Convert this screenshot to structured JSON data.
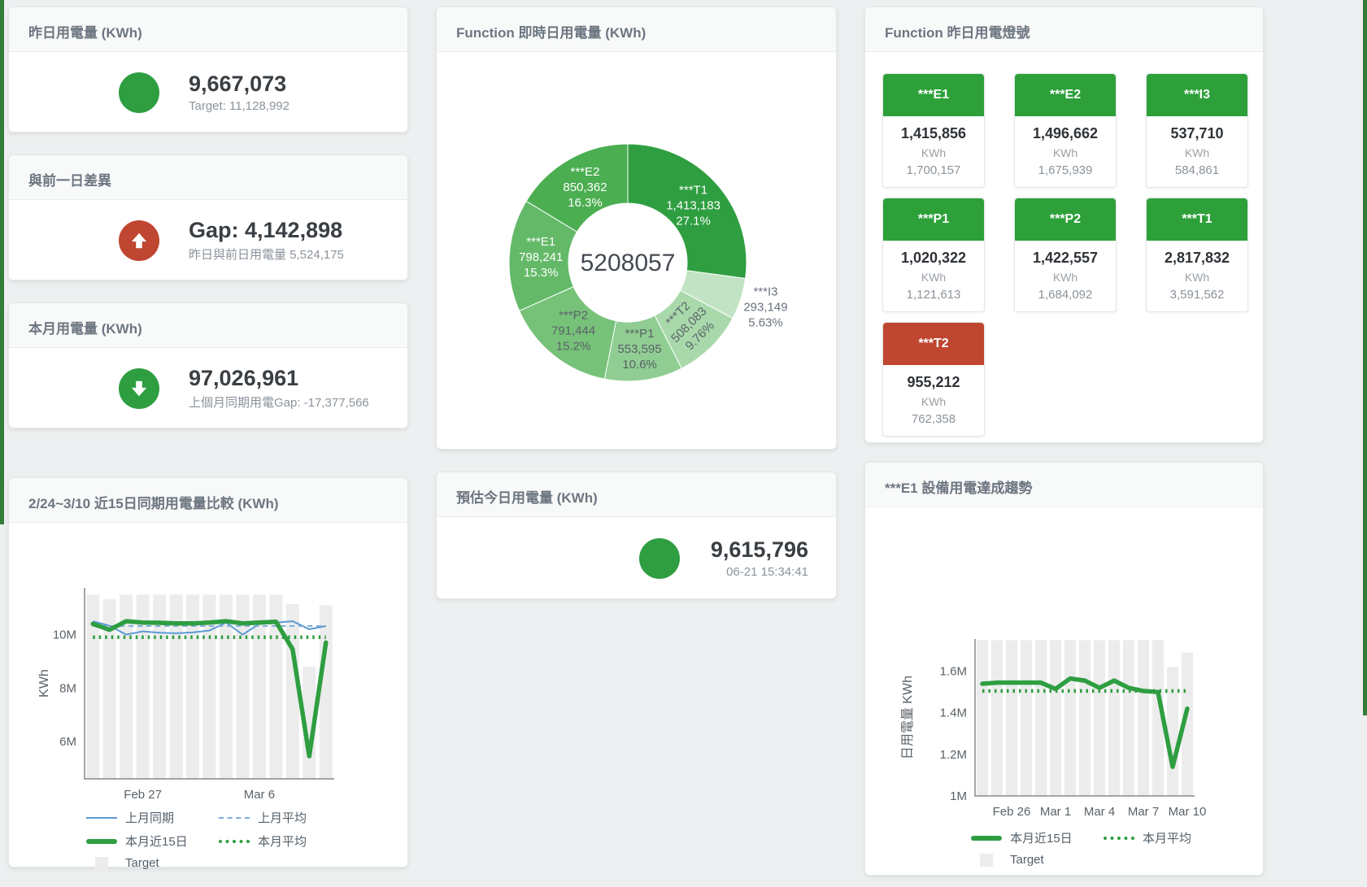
{
  "colors": {
    "green": "#2e9e41",
    "red": "#bf4630",
    "blue": "#5b9bd5",
    "blue_light": "#7fadda",
    "bar": "#ececec",
    "page_bg": "#edeff0",
    "edge_green": "#337d3b"
  },
  "cards": {
    "yesterday": {
      "title": "昨日用電量 (KWh)",
      "value": "9,667,073",
      "subtitle": "Target: 11,128,992"
    },
    "day_gap": {
      "title": "與前一日差異",
      "value": "Gap: 4,142,898",
      "subtitle": "昨日與前日用電量 5,524,175"
    },
    "month": {
      "title": "本月用電量 (KWh)",
      "value": "97,026,961",
      "subtitle": "上個月同期用電Gap: -17,377,566"
    },
    "estimate": {
      "title": "預估今日用電量 (KWh)",
      "value": "9,615,796",
      "subtitle": "06-21 15:34:41"
    },
    "compare": {
      "title": "2/24~3/10 近15日同期用電量比較 (KWh)"
    },
    "realtime": {
      "title": "Function 即時日用電量 (KWh)"
    },
    "lights": {
      "title": "Function 昨日用電燈號"
    },
    "trend": {
      "title": "***E1 設備用電達成趨勢"
    }
  },
  "lights": {
    "tiles": [
      {
        "name": "***E1",
        "value": "1,415,856",
        "unit": "KWh",
        "target": "1,700,157",
        "status": "green"
      },
      {
        "name": "***E2",
        "value": "1,496,662",
        "unit": "KWh",
        "target": "1,675,939",
        "status": "green"
      },
      {
        "name": "***I3",
        "value": "537,710",
        "unit": "KWh",
        "target": "584,861",
        "status": "green"
      },
      {
        "name": "***P1",
        "value": "1,020,322",
        "unit": "KWh",
        "target": "1,121,613",
        "status": "green"
      },
      {
        "name": "***P2",
        "value": "1,422,557",
        "unit": "KWh",
        "target": "1,684,092",
        "status": "green"
      },
      {
        "name": "***T1",
        "value": "2,817,832",
        "unit": "KWh",
        "target": "3,591,562",
        "status": "green"
      },
      {
        "name": "***T2",
        "value": "955,212",
        "unit": "KWh",
        "target": "762,358",
        "status": "red"
      }
    ]
  },
  "chart_data": [
    {
      "type": "pie",
      "title": "Function 即時日用電量 (KWh)",
      "center_total": "5208057",
      "legend_position": "none",
      "slices": [
        {
          "label": "***T1",
          "value": 1413183,
          "value_str": "1,413,183",
          "pct": "27.1%",
          "color": "#2f9e41",
          "label_color": "#ffffff"
        },
        {
          "label": "***I3",
          "value": 293149,
          "value_str": "293,149",
          "pct": "5.63%",
          "color": "#c3e4c4",
          "label_color": "#6b7280",
          "placement": "outside"
        },
        {
          "label": "***T2",
          "value": 508083,
          "value_str": "508,083",
          "pct": "9.76%",
          "color": "#a9d9ab",
          "label_color": "#5a6268",
          "rotate": -45
        },
        {
          "label": "***P1",
          "value": 553595,
          "value_str": "553,595",
          "pct": "10.6%",
          "color": "#90cd92",
          "label_color": "#5a6268"
        },
        {
          "label": "***P2",
          "value": 791444,
          "value_str": "791,444",
          "pct": "15.2%",
          "color": "#77c279",
          "label_color": "#5a6268"
        },
        {
          "label": "***E1",
          "value": 798241,
          "value_str": "798,241",
          "pct": "15.3%",
          "color": "#63b968",
          "label_color": "#ffffff"
        },
        {
          "label": "***E2",
          "value": 850362,
          "value_str": "850,362",
          "pct": "16.3%",
          "color": "#4bae51",
          "label_color": "#ffffff"
        }
      ]
    },
    {
      "type": "line",
      "title": "2/24~3/10 近15日同期用電量比較 (KWh)",
      "ylabel": "KWh",
      "unit": "million KWh",
      "grid": false,
      "categories": [
        "Feb 24",
        "Feb 25",
        "Feb 26",
        "Feb 27",
        "Feb 28",
        "Mar 1",
        "Mar 2",
        "Mar 3",
        "Mar 4",
        "Mar 5",
        "Mar 6",
        "Mar 7",
        "Mar 8",
        "Mar 9",
        "Mar 10"
      ],
      "ylim": [
        4.6,
        11.75
      ],
      "yticks": [
        {
          "v": 6,
          "label": "6M"
        },
        {
          "v": 8,
          "label": "8M"
        },
        {
          "v": 10,
          "label": "10M"
        }
      ],
      "xticks": [
        {
          "i": 3,
          "label": "Feb 27"
        },
        {
          "i": 10,
          "label": "Mar 6"
        }
      ],
      "target_bars": [
        11.5,
        11.33,
        11.5,
        11.5,
        11.5,
        11.5,
        11.5,
        11.5,
        11.5,
        11.5,
        11.5,
        11.5,
        11.14,
        8.8,
        11.1
      ],
      "series": [
        {
          "name": "上月同期",
          "style": "line-blue",
          "values": [
            10.5,
            10.33,
            10.0,
            10.12,
            10.07,
            10.05,
            10.08,
            10.15,
            10.45,
            10.0,
            10.4,
            10.45,
            10.5,
            10.2,
            10.32
          ]
        },
        {
          "name": "上月平均",
          "style": "dash-blue",
          "values": [
            10.32,
            10.32,
            10.32,
            10.32,
            10.32,
            10.32,
            10.32,
            10.32,
            10.32,
            10.32,
            10.32,
            10.32,
            10.32,
            10.32,
            10.32
          ]
        },
        {
          "name": "本月近15日",
          "style": "line-green",
          "values": [
            10.4,
            10.18,
            10.5,
            10.45,
            10.44,
            10.42,
            10.42,
            10.45,
            10.5,
            10.42,
            10.45,
            10.48,
            9.45,
            5.45,
            9.7
          ]
        },
        {
          "name": "本月平均",
          "style": "dot-green",
          "values": [
            9.9,
            9.9,
            9.9,
            9.9,
            9.9,
            9.9,
            9.9,
            9.9,
            9.9,
            9.9,
            9.9,
            9.9,
            9.9,
            9.9,
            9.9
          ]
        }
      ],
      "legend": [
        {
          "label": "上月同期",
          "style": "line-blue"
        },
        {
          "label": "上月平均",
          "style": "dash-blue"
        },
        {
          "label": "本月近15日",
          "style": "line-green"
        },
        {
          "label": "本月平均",
          "style": "dot-green"
        },
        {
          "label": "Target",
          "style": "box-gray"
        }
      ]
    },
    {
      "type": "line",
      "title": "***E1 設備用電達成趨勢",
      "ylabel": "日用電量 KWh",
      "unit": "million KWh",
      "grid": false,
      "categories": [
        "Feb 24",
        "Feb 25",
        "Feb 26",
        "Feb 27",
        "Feb 28",
        "Mar 1",
        "Mar 2",
        "Mar 3",
        "Mar 4",
        "Mar 5",
        "Mar 6",
        "Mar 7",
        "Mar 8",
        "Mar 9",
        "Mar 10"
      ],
      "ylim": [
        1.0,
        1.755
      ],
      "yticks": [
        {
          "v": 1,
          "label": "1M"
        },
        {
          "v": 1.2,
          "label": "1.2M"
        },
        {
          "v": 1.4,
          "label": "1.4M"
        },
        {
          "v": 1.6,
          "label": "1.6M"
        }
      ],
      "xticks": [
        {
          "i": 2,
          "label": "Feb 26"
        },
        {
          "i": 5,
          "label": "Mar 1"
        },
        {
          "i": 8,
          "label": "Mar 4"
        },
        {
          "i": 11,
          "label": "Mar 7"
        },
        {
          "i": 14,
          "label": "Mar 10"
        }
      ],
      "target_bars": [
        1.75,
        1.75,
        1.75,
        1.75,
        1.75,
        1.75,
        1.75,
        1.75,
        1.75,
        1.75,
        1.75,
        1.75,
        1.75,
        1.62,
        1.69
      ],
      "series": [
        {
          "name": "本月近15日",
          "style": "line-green",
          "values": [
            1.54,
            1.545,
            1.545,
            1.545,
            1.545,
            1.515,
            1.565,
            1.555,
            1.52,
            1.555,
            1.52,
            1.505,
            1.5,
            1.14,
            1.42
          ]
        },
        {
          "name": "本月平均",
          "style": "dot-green",
          "values": [
            1.505,
            1.505,
            1.505,
            1.505,
            1.505,
            1.505,
            1.505,
            1.505,
            1.505,
            1.505,
            1.505,
            1.505,
            1.505,
            1.505,
            1.505
          ]
        }
      ],
      "legend": [
        {
          "label": "本月近15日",
          "style": "line-green"
        },
        {
          "label": "本月平均",
          "style": "dot-green"
        },
        {
          "label": "Target",
          "style": "box-gray"
        }
      ]
    }
  ]
}
